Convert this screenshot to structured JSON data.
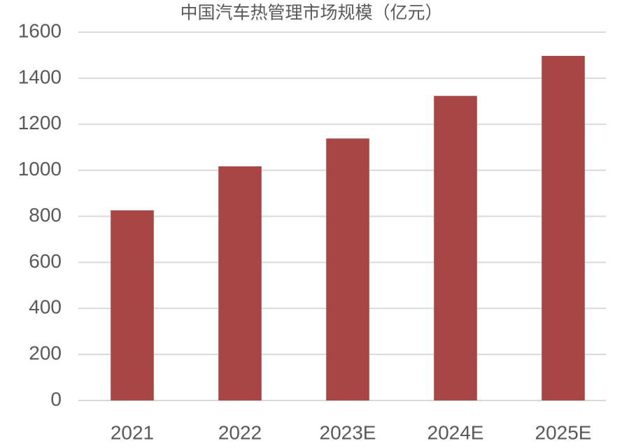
{
  "chart_data": {
    "type": "bar",
    "title": "中国汽车热管理市场规模（亿元）",
    "categories": [
      "2021",
      "2022",
      "2023E",
      "2024E",
      "2025E"
    ],
    "values": [
      826,
      1017,
      1138,
      1323,
      1497
    ],
    "color": "#a84646",
    "ylim": [
      0,
      1600
    ],
    "yticks": [
      0,
      200,
      400,
      600,
      800,
      1000,
      1200,
      1400,
      1600
    ],
    "grid": true
  }
}
